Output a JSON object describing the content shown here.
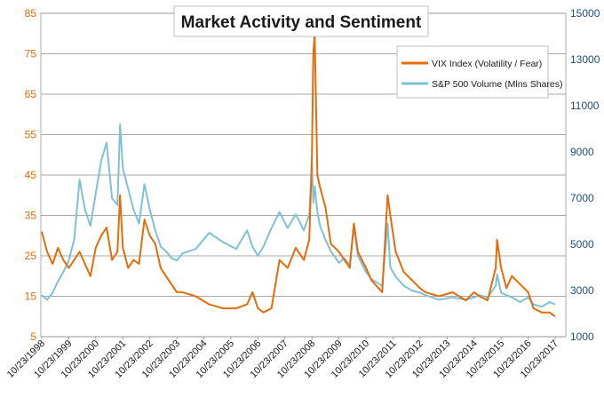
{
  "chart_data": {
    "type": "line",
    "title": "Market Activity and Sentiment",
    "x_tick_labels": [
      "10/23/1998",
      "10/23/1999",
      "10/23/2000",
      "10/23/2001",
      "10/23/2002",
      "10/23/2003",
      "10/23/2004",
      "10/23/2005",
      "10/23/2006",
      "10/23/2007",
      "10/23/2008",
      "10/23/2009",
      "10/23/2010",
      "10/23/2011",
      "10/23/2012",
      "10/23/2013",
      "10/23/2014",
      "10/23/2015",
      "10/23/2016",
      "10/23/2017"
    ],
    "y_left": {
      "min": 5,
      "max": 85,
      "ticks": [
        5,
        15,
        25,
        35,
        45,
        55,
        65,
        75,
        85
      ],
      "color": "#e46c0a"
    },
    "y_right": {
      "min": 1000,
      "max": 15000,
      "ticks": [
        1000,
        3000,
        5000,
        7000,
        9000,
        11000,
        13000,
        15000
      ],
      "color": "#1f4e79"
    },
    "grid": "horizontal",
    "legend_position": "top-right",
    "series": [
      {
        "name": "VIX Index (Volatility / Fear)",
        "axis": "left",
        "color": "#e46c0a",
        "x": [
          1998.8,
          1999.0,
          1999.2,
          1999.4,
          1999.6,
          1999.8,
          2000.0,
          2000.2,
          2000.4,
          2000.6,
          2000.8,
          2001.0,
          2001.2,
          2001.4,
          2001.6,
          2001.7,
          2001.8,
          2002.0,
          2002.2,
          2002.4,
          2002.6,
          2002.8,
          2003.0,
          2003.2,
          2003.4,
          2003.6,
          2003.8,
          2004.0,
          2004.5,
          2005.0,
          2005.5,
          2006.0,
          2006.4,
          2006.6,
          2006.8,
          2007.0,
          2007.3,
          2007.6,
          2007.9,
          2008.2,
          2008.5,
          2008.7,
          2008.8,
          2008.85,
          2008.9,
          2009.0,
          2009.1,
          2009.3,
          2009.5,
          2009.8,
          2010.0,
          2010.2,
          2010.35,
          2010.5,
          2010.8,
          2011.0,
          2011.4,
          2011.6,
          2011.7,
          2011.9,
          2012.2,
          2012.5,
          2012.8,
          2013.0,
          2013.5,
          2014.0,
          2014.5,
          2014.8,
          2015.0,
          2015.3,
          2015.6,
          2015.65,
          2015.8,
          2016.0,
          2016.2,
          2016.5,
          2016.8,
          2017.0,
          2017.3,
          2017.6,
          2017.8
        ],
        "y": [
          31,
          26,
          23,
          27,
          24,
          22,
          24,
          26,
          23,
          20,
          27,
          30,
          32,
          24,
          26,
          40,
          27,
          22,
          24,
          23,
          34,
          30,
          28,
          22,
          20,
          18,
          16,
          16,
          15,
          13,
          12,
          12,
          13,
          16,
          12,
          11,
          12,
          24,
          22,
          27,
          24,
          29,
          50,
          75,
          80,
          45,
          42,
          37,
          28,
          26,
          24,
          22,
          33,
          26,
          22,
          19,
          16,
          40,
          35,
          26,
          21,
          19,
          17,
          16,
          15,
          16,
          14,
          16,
          15,
          14,
          22,
          29,
          22,
          17,
          20,
          18,
          16,
          12,
          11,
          11,
          10
        ]
      },
      {
        "name": "S&P 500 Volume (Mlns Shares)",
        "axis": "right",
        "color": "#7fc1d4",
        "x": [
          1998.8,
          1999.0,
          1999.2,
          1999.4,
          1999.6,
          1999.8,
          2000.0,
          2000.2,
          2000.4,
          2000.6,
          2000.8,
          2001.0,
          2001.2,
          2001.4,
          2001.6,
          2001.7,
          2001.8,
          2002.0,
          2002.2,
          2002.4,
          2002.6,
          2002.8,
          2003.0,
          2003.2,
          2003.4,
          2003.6,
          2003.8,
          2004.0,
          2004.5,
          2005.0,
          2005.5,
          2006.0,
          2006.4,
          2006.6,
          2006.8,
          2007.0,
          2007.3,
          2007.6,
          2007.9,
          2008.2,
          2008.5,
          2008.7,
          2008.8,
          2008.85,
          2008.9,
          2009.0,
          2009.1,
          2009.3,
          2009.5,
          2009.8,
          2010.0,
          2010.2,
          2010.35,
          2010.5,
          2010.8,
          2011.0,
          2011.4,
          2011.6,
          2011.7,
          2011.9,
          2012.2,
          2012.5,
          2012.8,
          2013.0,
          2013.5,
          2014.0,
          2014.5,
          2014.8,
          2015.0,
          2015.3,
          2015.6,
          2015.65,
          2015.8,
          2016.0,
          2016.2,
          2016.5,
          2016.8,
          2017.0,
          2017.3,
          2017.6,
          2017.8
        ],
        "y": [
          2800,
          2600,
          2900,
          3400,
          3800,
          4300,
          5200,
          7800,
          6500,
          5800,
          7200,
          8600,
          9400,
          7000,
          6700,
          10200,
          8300,
          7400,
          6500,
          5900,
          7600,
          6500,
          5600,
          4900,
          4700,
          4400,
          4300,
          4600,
          4800,
          5500,
          5100,
          4800,
          5600,
          4900,
          4500,
          4900,
          5700,
          6400,
          5700,
          6300,
          5600,
          6300,
          8500,
          6800,
          7500,
          6400,
          5800,
          5200,
          4700,
          4200,
          4400,
          4100,
          5800,
          4500,
          3800,
          3500,
          3200,
          5900,
          4000,
          3600,
          3200,
          3000,
          2900,
          2800,
          2600,
          2700,
          2600,
          2700,
          2800,
          2700,
          3200,
          3700,
          2900,
          2800,
          2700,
          2500,
          2700,
          2400,
          2300,
          2500,
          2400
        ]
      }
    ]
  }
}
